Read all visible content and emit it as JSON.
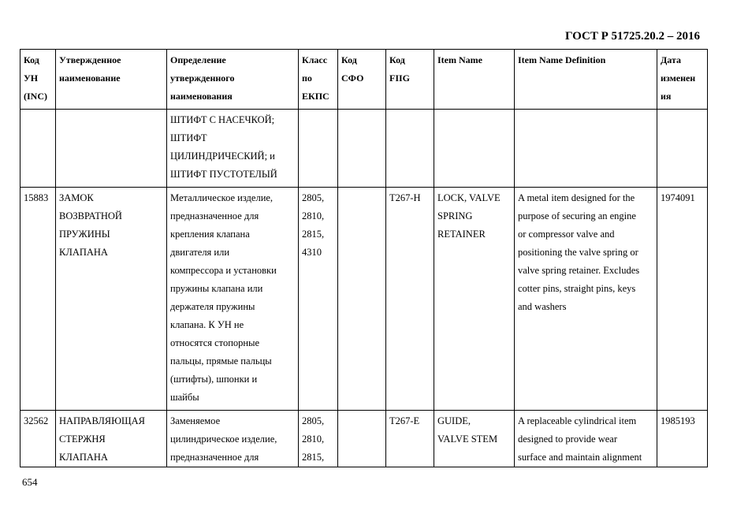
{
  "header": {
    "standard": "ГОСТ Р 51725.20.2 – 2016"
  },
  "table": {
    "columns": [
      "Код\nУН\n(INC)",
      "Утвержденное\nнаименование",
      "Определение\nутвержденного\nнаименования",
      "Класс\nпо\nЕКПС",
      "Код\nСФО",
      "Код\nFIIG",
      "Item Name",
      "Item Name Definition",
      "Дата\nизменен\nия"
    ],
    "rows": [
      [
        "",
        "",
        "ШТИФТ С НАСЕЧКОЙ;\nШТИФТ\nЦИЛИНДРИЧЕСКИЙ; и\nШТИФТ ПУСТОТЕЛЫЙ",
        "",
        "",
        "",
        "",
        "",
        ""
      ],
      [
        "15883",
        "ЗАМОК\nВОЗВРАТНОЙ\nПРУЖИНЫ\nКЛАПАНА",
        "Металлическое изделие,\nпредназначенное для\nкрепления клапана\nдвигателя или\nкомпрессора и установки\nпружины клапана или\nдержателя пружины\nклапана. К УН не\nотносятся стопорные\nпальцы, прямые пальцы\n(штифты), шпонки и\nшайбы",
        "2805,\n2810,\n2815,\n4310",
        "",
        "T267-H",
        "LOCK, VALVE\nSPRING\nRETAINER",
        "A metal item designed for the\npurpose of securing an engine\nor compressor valve and\npositioning the valve spring or\nvalve spring retainer. Excludes\ncotter pins, straight pins, keys\nand washers",
        "1974091"
      ],
      [
        "32562",
        "НАПРАВЛЯЮЩАЯ\nСТЕРЖНЯ\nКЛАПАНА",
        "Заменяемое\nцилиндрическое изделие,\nпредназначенное для",
        "2805,\n2810,\n2815,",
        "",
        "T267-E",
        "GUIDE,\nVALVE STEM",
        "A replaceable cylindrical item\ndesigned to provide wear\nsurface and maintain alignment",
        "1985193"
      ]
    ]
  },
  "footer": {
    "page_number": "654"
  }
}
